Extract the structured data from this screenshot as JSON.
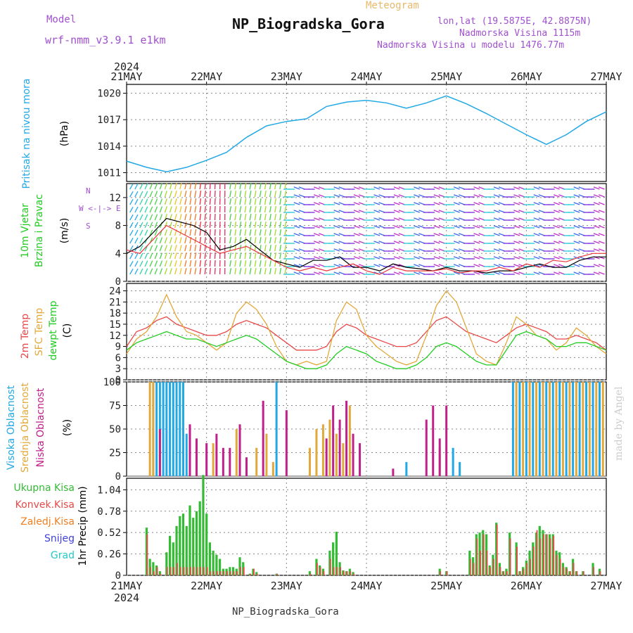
{
  "header": {
    "model_label": "Model",
    "model_name": "wrf-nmm_v3.9.1 e1km",
    "subtitle": "Meteogram",
    "station": "NP_Biogradska_Gora",
    "coords": "lon,lat (19.5875E, 42.8875N)",
    "elev": "Nadmorska Visina 1115m",
    "elev_model": "Nadmorska Visina u modelu 1476.77m",
    "year": "2024",
    "footer": "NP_Biogradska_Gora",
    "watermark": "made by Angel"
  },
  "colors": {
    "pressure": "#21a8e6",
    "wind_black": "#000000",
    "wind_red": "#e8343a",
    "temp2m": "#e84848",
    "sfc": "#e3a83a",
    "dew": "#22cc22",
    "high_cloud": "#21a8e6",
    "mid_cloud": "#e3a83a",
    "low_cloud": "#c0208a",
    "total_precip": "#33bb33",
    "conv_precip": "#e84848",
    "grid": "#888888"
  },
  "chart_data": [
    {
      "type": "line",
      "panel": "pressure",
      "ylabel": [
        "Pritisak na nivou mora",
        "(hPa)"
      ],
      "ylim": [
        1010,
        1021
      ],
      "yticks": [
        1011,
        1014,
        1017,
        1020
      ],
      "x": [
        0,
        6,
        12,
        18,
        24,
        30,
        36,
        42,
        48,
        54,
        60,
        66,
        72,
        78,
        84,
        90,
        96,
        102,
        108,
        114,
        120,
        126,
        132,
        138,
        144
      ],
      "values": [
        1012.3,
        1011.6,
        1011.1,
        1011.6,
        1012.4,
        1013.3,
        1015.0,
        1016.3,
        1016.8,
        1017.1,
        1018.5,
        1019.0,
        1019.2,
        1018.9,
        1018.3,
        1018.9,
        1019.7,
        1018.8,
        1017.7,
        1016.5,
        1015.3,
        1014.2,
        1015.3,
        1016.8,
        1017.9
      ]
    },
    {
      "type": "line",
      "panel": "wind",
      "ylabel": [
        "10m Vjetar",
        "Brzina i Pravac",
        "(m/s)"
      ],
      "compass": [
        "N",
        "W",
        "E",
        "S"
      ],
      "ylim": [
        0,
        14
      ],
      "yticks": [
        0,
        4,
        8,
        12
      ],
      "x": [
        0,
        4,
        8,
        12,
        16,
        20,
        24,
        28,
        32,
        36,
        40,
        44,
        48,
        52,
        56,
        60,
        64,
        68,
        72,
        76,
        80,
        84,
        88,
        92,
        96,
        100,
        104,
        108,
        112,
        116,
        120,
        124,
        128,
        132,
        136,
        140,
        144
      ],
      "series": [
        {
          "values": [
            4,
            5,
            7,
            9,
            8.5,
            8,
            7,
            4.5,
            5,
            6,
            4.5,
            3,
            2.5,
            2,
            3,
            3,
            3.5,
            2,
            2,
            1.5,
            2.5,
            2,
            1.8,
            1.5,
            2,
            1.5,
            1.5,
            1.2,
            1.5,
            1.5,
            2,
            2.5,
            2,
            2,
            3,
            3.5,
            3.5
          ]
        },
        {
          "values": [
            4.5,
            4,
            6,
            8,
            7,
            6,
            5,
            4,
            4.5,
            5,
            4,
            3,
            2,
            1.5,
            2,
            1.5,
            2,
            2.5,
            1.5,
            1,
            2,
            1.5,
            1.5,
            1.5,
            1.8,
            1.2,
            1.5,
            1.5,
            2,
            1.5,
            2.5,
            2,
            3,
            2.8,
            3.5,
            4,
            4
          ]
        }
      ],
      "arrow_colors": [
        "#22aaee",
        "#2dd4a6",
        "#48d14a",
        "#a8d62a",
        "#f0c020",
        "#f07a20",
        "#e83040",
        "#e03060",
        "#23c8d8",
        "#3a6ae8",
        "#7a2ae0",
        "#c030c8"
      ]
    },
    {
      "type": "line",
      "panel": "temperature",
      "ylabel": [
        "2m Temp",
        "SFC Temp",
        "dewpt Temp",
        "(C)"
      ],
      "ylim": [
        0,
        26
      ],
      "yticks": [
        0,
        3,
        6,
        9,
        12,
        15,
        18,
        21,
        24
      ],
      "x": [
        0,
        3,
        6,
        9,
        12,
        15,
        18,
        21,
        24,
        27,
        30,
        33,
        36,
        39,
        42,
        45,
        48,
        51,
        54,
        57,
        60,
        63,
        66,
        69,
        72,
        75,
        78,
        81,
        84,
        87,
        90,
        93,
        96,
        99,
        102,
        105,
        108,
        111,
        114,
        117,
        120,
        123,
        126,
        129,
        132,
        135,
        138,
        141,
        144
      ],
      "series": [
        {
          "name": "2m Temp",
          "values": [
            9,
            13,
            14,
            16,
            17,
            15,
            14,
            13,
            12,
            12,
            13,
            15,
            16,
            15,
            14,
            12,
            10,
            8,
            8,
            8,
            9,
            13,
            15,
            14,
            12,
            11,
            10,
            9,
            9,
            10,
            13,
            16,
            17,
            15,
            13,
            12,
            11,
            10,
            12,
            14,
            15,
            14,
            13,
            11,
            11,
            12,
            11,
            10,
            8
          ]
        },
        {
          "name": "SFC Temp",
          "values": [
            7,
            11,
            13,
            17,
            23,
            17,
            13,
            12,
            10,
            8,
            10,
            18,
            21,
            19,
            15,
            9,
            5,
            4,
            5,
            4,
            5,
            16,
            21,
            19,
            12,
            9,
            7,
            5,
            4,
            5,
            12,
            20,
            24,
            21,
            14,
            7,
            5,
            4,
            10,
            17,
            15,
            12,
            11,
            8,
            10,
            14,
            12,
            9,
            7
          ]
        },
        {
          "name": "dewpt Temp",
          "values": [
            8,
            10,
            11,
            12,
            13,
            12,
            11,
            11,
            10,
            9,
            10,
            11,
            12,
            11,
            9,
            7,
            5,
            4,
            3,
            3,
            4,
            7,
            9,
            8,
            7,
            5,
            4,
            3,
            3,
            4,
            6,
            9,
            10,
            9,
            7,
            5,
            4,
            4,
            8,
            12,
            13,
            12,
            11,
            9,
            9,
            10,
            10,
            9,
            8
          ]
        }
      ]
    },
    {
      "type": "bar",
      "panel": "clouds",
      "ylabel": [
        "Visoka Oblacnost",
        "Srednja Oblacnost",
        "Niska Oblacnost",
        "(%)"
      ],
      "ylim": [
        0,
        100
      ],
      "yticks": [
        0,
        25,
        50,
        75,
        100
      ],
      "series": [
        {
          "name": "Visoka Oblacnost",
          "color": "#21a8e6",
          "x": [
            8,
            9,
            10,
            11,
            12,
            13,
            14,
            15,
            16,
            17,
            18,
            45,
            84,
            98,
            100,
            116,
            118,
            120,
            122,
            124,
            126,
            128,
            130,
            132,
            134,
            136,
            138,
            140,
            142
          ],
          "values": [
            100,
            100,
            100,
            100,
            100,
            100,
            100,
            100,
            100,
            100,
            45,
            100,
            15,
            30,
            15,
            100,
            100,
            100,
            100,
            100,
            100,
            100,
            100,
            100,
            100,
            100,
            100,
            100,
            100
          ]
        },
        {
          "name": "Srednja Oblacnost",
          "color": "#e3a83a",
          "x": [
            7,
            8,
            26,
            33,
            39,
            42,
            44,
            55,
            57,
            59,
            61,
            63,
            65,
            67,
            94,
            117,
            119,
            121,
            123,
            125,
            127,
            129,
            131,
            133,
            135,
            137,
            139,
            141,
            143
          ],
          "values": [
            100,
            100,
            35,
            50,
            30,
            45,
            15,
            30,
            50,
            55,
            60,
            45,
            35,
            75,
            30,
            100,
            100,
            100,
            100,
            100,
            100,
            100,
            100,
            100,
            100,
            100,
            100,
            100,
            100
          ]
        },
        {
          "name": "Niska Oblacnost",
          "color": "#c0208a",
          "x": [
            10,
            19,
            21,
            24,
            27,
            29,
            31,
            34,
            36,
            41,
            48,
            60,
            62,
            64,
            66,
            68,
            70,
            80,
            90,
            92,
            94,
            96
          ],
          "values": [
            50,
            55,
            40,
            35,
            45,
            30,
            30,
            55,
            20,
            80,
            70,
            40,
            75,
            60,
            80,
            45,
            35,
            8,
            60,
            75,
            40,
            75
          ]
        }
      ]
    },
    {
      "type": "bar",
      "panel": "precipitation",
      "ylabel": [
        "1hr Precip (mm)"
      ],
      "legend": [
        "Ukupna Kisa",
        "Konvek.Kisa",
        "Zaledj.Kisa",
        "Snijeg",
        "Grad"
      ],
      "legend_colors": [
        "#33bb33",
        "#e84848",
        "#f08020",
        "#4040e0",
        "#22c8c8"
      ],
      "ylim": [
        0,
        1.18
      ],
      "yticks": [
        0,
        0.26,
        0.52,
        0.78,
        1.04
      ],
      "x": [
        6,
        7,
        8,
        9,
        10,
        12,
        13,
        14,
        15,
        16,
        17,
        18,
        19,
        20,
        21,
        22,
        23,
        24,
        25,
        26,
        27,
        28,
        29,
        30,
        31,
        32,
        33,
        34,
        35,
        37,
        38,
        39,
        45,
        55,
        57,
        58,
        59,
        61,
        62,
        63,
        64,
        65,
        66,
        67,
        68,
        94,
        96,
        103,
        104,
        105,
        106,
        107,
        108,
        109,
        110,
        111,
        112,
        113,
        114,
        115,
        117,
        118,
        119,
        120,
        121,
        122,
        123,
        124,
        125,
        126,
        127,
        128,
        129,
        130,
        131,
        132,
        133,
        134,
        135,
        137,
        140,
        142
      ],
      "series": [
        {
          "name": "Ukupna Kisa",
          "values": [
            0.58,
            0.2,
            0.16,
            0.12,
            0.05,
            0.28,
            0.48,
            0.4,
            0.6,
            0.72,
            0.75,
            0.6,
            0.85,
            0.7,
            0.78,
            0.9,
            1.22,
            0.75,
            0.4,
            0.3,
            0.25,
            0.2,
            0.08,
            0.08,
            0.1,
            0.1,
            0.08,
            0.22,
            0.16,
            0.02,
            0.08,
            0.04,
            0.02,
            0.05,
            0.2,
            0.12,
            0.08,
            0.3,
            0.4,
            0.53,
            0.16,
            0.06,
            0.05,
            0.08,
            0.04,
            0.08,
            0.05,
            0.3,
            0.22,
            0.5,
            0.52,
            0.55,
            0.5,
            0.12,
            0.25,
            0.64,
            0.15,
            0.05,
            0.08,
            0.52,
            0.4,
            0.05,
            0.1,
            0.18,
            0.3,
            0.4,
            0.52,
            0.6,
            0.55,
            0.5,
            0.5,
            0.5,
            0.3,
            0.28,
            0.15,
            0.1,
            0.05,
            0.2,
            0.05,
            0.05,
            0.15,
            0.08
          ]
        },
        {
          "name": "Konvek.Kisa",
          "values": [
            0.5,
            0.1,
            0.05,
            0.1,
            0.02,
            0.1,
            0.1,
            0.1,
            0.15,
            0.1,
            0.1,
            0.1,
            0.1,
            0.1,
            0.1,
            0.1,
            0.1,
            0.1,
            0.05,
            0.05,
            0.05,
            0.05,
            0.05,
            0.05,
            0.05,
            0.05,
            0.05,
            0.1,
            0.1,
            0.02,
            0.08,
            0.02,
            0.02,
            0.02,
            0.15,
            0.1,
            0.05,
            0.2,
            0.1,
            0.1,
            0.1,
            0.05,
            0.05,
            0.05,
            0.02,
            0.05,
            0.05,
            0.2,
            0.15,
            0.45,
            0.3,
            0.5,
            0.3,
            0.1,
            0.2,
            0.62,
            0.1,
            0.05,
            0.05,
            0.45,
            0.35,
            0.05,
            0.08,
            0.15,
            0.2,
            0.35,
            0.55,
            0.45,
            0.5,
            0.5,
            0.45,
            0.48,
            0.25,
            0.2,
            0.1,
            0.08,
            0.05,
            0.15,
            0.05,
            0.05,
            0.1,
            0.05
          ]
        }
      ]
    }
  ],
  "x_axis": {
    "labels": [
      "21MAY",
      "22MAY",
      "23MAY",
      "24MAY",
      "25MAY",
      "26MAY",
      "27MAY"
    ],
    "range_hours": [
      0,
      144
    ]
  }
}
